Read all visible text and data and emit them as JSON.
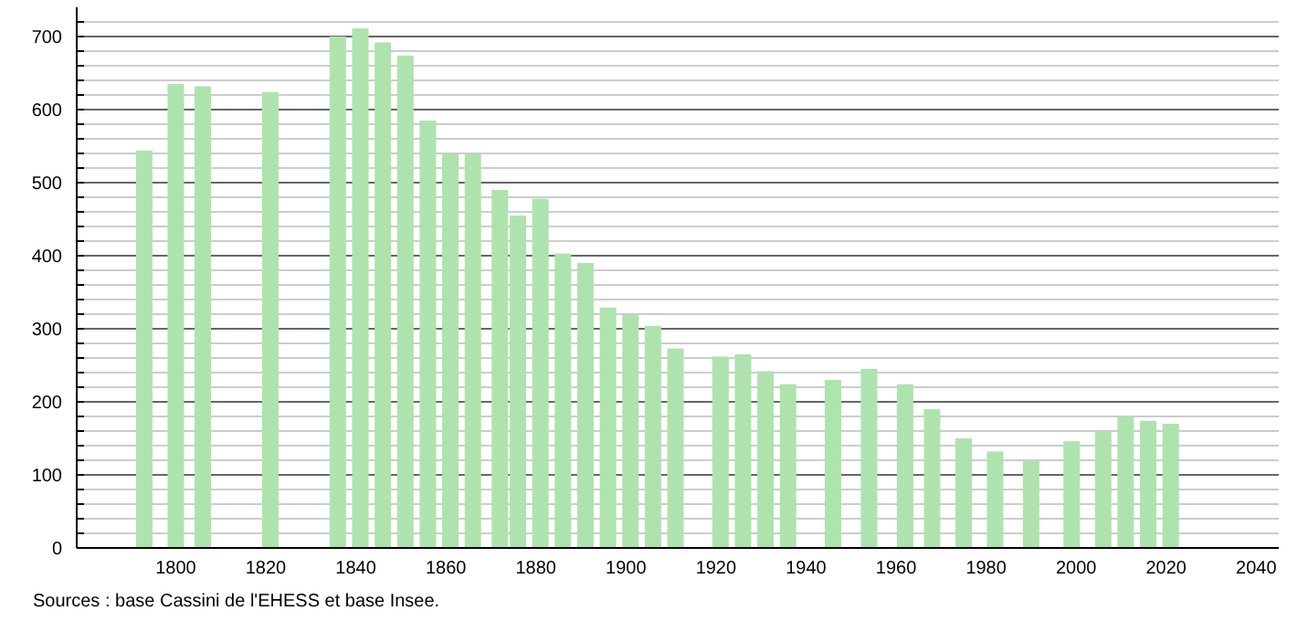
{
  "chart_data": {
    "type": "bar",
    "annotations": [
      "Sources : base Cassini de l'EHESS et base Insee."
    ],
    "x": [
      1793,
      1800,
      1806,
      1821,
      1836,
      1841,
      1846,
      1851,
      1856,
      1861,
      1866,
      1872,
      1876,
      1881,
      1886,
      1891,
      1896,
      1901,
      1906,
      1911,
      1921,
      1926,
      1931,
      1936,
      1946,
      1954,
      1962,
      1968,
      1975,
      1982,
      1990,
      1999,
      2006,
      2011,
      2016,
      2021
    ],
    "values": [
      544,
      635,
      632,
      624,
      700,
      711,
      692,
      674,
      585,
      539,
      540,
      490,
      455,
      478,
      403,
      390,
      329,
      319,
      304,
      273,
      262,
      265,
      242,
      224,
      230,
      245,
      224,
      190,
      150,
      132,
      119,
      146,
      160,
      180,
      174,
      170
    ],
    "color": "#aee3ae",
    "xlim": [
      1778,
      2045
    ],
    "xticks": [
      1800,
      1820,
      1840,
      1860,
      1880,
      1900,
      1920,
      1940,
      1960,
      1980,
      2000,
      2020,
      2040
    ],
    "ylim": [
      0,
      740
    ],
    "yticks": [
      0,
      {
        "value": 20,
        "label": null
      },
      {
        "value": 40,
        "label": null
      },
      {
        "value": 60,
        "label": null
      },
      {
        "value": 80,
        "label": null
      },
      100,
      {
        "value": 120,
        "label": null
      },
      {
        "value": 140,
        "label": null
      },
      {
        "value": 160,
        "label": null
      },
      {
        "value": 180,
        "label": null
      },
      200,
      {
        "value": 220,
        "label": null
      },
      {
        "value": 240,
        "label": null
      },
      {
        "value": 260,
        "label": null
      },
      {
        "value": 280,
        "label": null
      },
      300,
      {
        "value": 320,
        "label": null
      },
      {
        "value": 340,
        "label": null
      },
      {
        "value": 360,
        "label": null
      },
      {
        "value": 380,
        "label": null
      },
      400,
      {
        "value": 420,
        "label": null
      },
      {
        "value": 440,
        "label": null
      },
      {
        "value": 460,
        "label": null
      },
      {
        "value": 480,
        "label": null
      },
      500,
      {
        "value": 520,
        "label": null
      },
      {
        "value": 540,
        "label": null
      },
      {
        "value": 560,
        "label": null
      },
      {
        "value": 580,
        "label": null
      },
      600,
      {
        "value": 620,
        "label": null
      },
      {
        "value": 640,
        "label": null
      },
      {
        "value": 660,
        "label": null
      },
      {
        "value": 680,
        "label": null
      },
      700,
      {
        "value": 720,
        "label": null
      }
    ],
    "grid": "y"
  }
}
